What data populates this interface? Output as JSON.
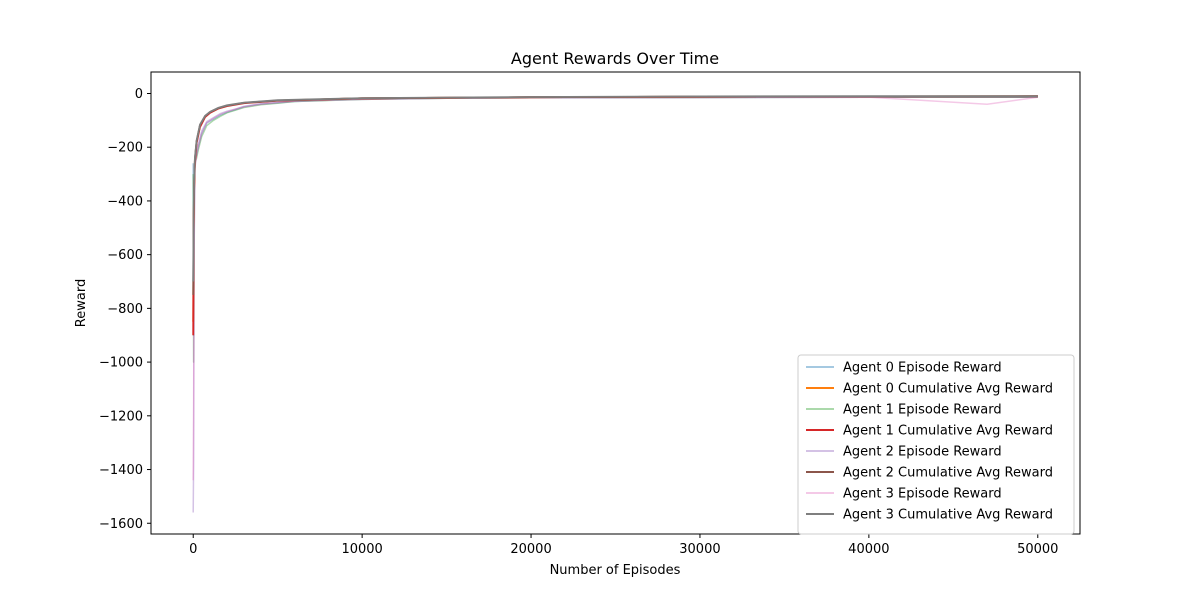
{
  "chart_data": {
    "type": "line",
    "title": "Agent Rewards Over Time",
    "xlabel": "Number of Episodes",
    "ylabel": "Reward",
    "xlim": [
      -2500,
      52500
    ],
    "ylim": [
      -1640,
      80
    ],
    "x_ticks": [
      0,
      10000,
      20000,
      30000,
      40000,
      50000
    ],
    "x_tick_labels": [
      "0",
      "10000",
      "20000",
      "30000",
      "40000",
      "50000"
    ],
    "y_ticks": [
      0,
      -200,
      -400,
      -600,
      -800,
      -1000,
      -1200,
      -1400,
      -1600
    ],
    "y_tick_labels": [
      "0",
      "−200",
      "−400",
      "−600",
      "−800",
      "−1000",
      "−1200",
      "−1400",
      "−1600"
    ],
    "grid": false,
    "legend_position": "lower-right",
    "series": [
      {
        "name": "Agent 0 Episode Reward",
        "kind": "episode",
        "color": "#1f77b4",
        "opacity": 0.4,
        "x": [
          0,
          20,
          50,
          100,
          200,
          300,
          500,
          800,
          1200,
          1600,
          2000,
          2500,
          3000,
          4000,
          5000,
          6000,
          8000,
          10000,
          15000,
          20000,
          30000,
          40000,
          50000
        ],
        "y": [
          -260,
          -900,
          -400,
          -250,
          -230,
          -200,
          -150,
          -110,
          -95,
          -80,
          -70,
          -60,
          -50,
          -40,
          -35,
          -30,
          -25,
          -22,
          -18,
          -16,
          -15,
          -14,
          -14
        ]
      },
      {
        "name": "Agent 0 Cumulative Avg Reward",
        "kind": "cumulative",
        "color": "#ff7f0e",
        "opacity": 1.0,
        "x": [
          0,
          20,
          50,
          100,
          200,
          400,
          700,
          1000,
          1500,
          2000,
          3000,
          5000,
          10000,
          20000,
          30000,
          40000,
          50000
        ],
        "y": [
          -850,
          -500,
          -350,
          -250,
          -180,
          -120,
          -85,
          -70,
          -55,
          -46,
          -35,
          -26,
          -18,
          -14,
          -12,
          -11,
          -10
        ]
      },
      {
        "name": "Agent 1 Episode Reward",
        "kind": "episode",
        "color": "#2ca02c",
        "opacity": 0.4,
        "x": [
          0,
          20,
          50,
          100,
          200,
          300,
          500,
          800,
          1200,
          1600,
          2000,
          2500,
          3000,
          4000,
          5000,
          6000,
          8000,
          10000,
          15000,
          20000,
          30000,
          40000,
          50000
        ],
        "y": [
          -300,
          -1000,
          -450,
          -260,
          -240,
          -210,
          -160,
          -120,
          -100,
          -85,
          -72,
          -62,
          -52,
          -42,
          -36,
          -30,
          -26,
          -22,
          -18,
          -16,
          -15,
          -14,
          -14
        ]
      },
      {
        "name": "Agent 1 Cumulative Avg Reward",
        "kind": "cumulative",
        "color": "#d62728",
        "opacity": 1.0,
        "x": [
          0,
          20,
          50,
          100,
          200,
          400,
          700,
          1000,
          1500,
          2000,
          3000,
          5000,
          10000,
          20000,
          30000,
          40000,
          50000
        ],
        "y": [
          -900,
          -520,
          -360,
          -260,
          -185,
          -125,
          -88,
          -72,
          -56,
          -47,
          -36,
          -27,
          -18,
          -14,
          -12,
          -11,
          -10
        ]
      },
      {
        "name": "Agent 2 Episode Reward",
        "kind": "episode",
        "color": "#9467bd",
        "opacity": 0.4,
        "x": [
          0,
          20,
          50,
          100,
          200,
          300,
          500,
          800,
          1200,
          1600,
          2000,
          2500,
          3000,
          4000,
          5000,
          6000,
          8000,
          10000,
          15000,
          20000,
          30000,
          40000,
          50000
        ],
        "y": [
          -1560,
          -1380,
          -600,
          -280,
          -220,
          -190,
          -140,
          -105,
          -90,
          -75,
          -66,
          -58,
          -48,
          -38,
          -33,
          -28,
          -24,
          -21,
          -17,
          -16,
          -15,
          -14,
          -14
        ]
      },
      {
        "name": "Agent 2 Cumulative Avg Reward",
        "kind": "cumulative",
        "color": "#8c564b",
        "opacity": 1.0,
        "x": [
          0,
          20,
          50,
          100,
          200,
          400,
          700,
          1000,
          1500,
          2000,
          3000,
          5000,
          10000,
          20000,
          30000,
          40000,
          50000
        ],
        "y": [
          -750,
          -480,
          -340,
          -245,
          -178,
          -118,
          -84,
          -69,
          -54,
          -45,
          -35,
          -26,
          -18,
          -14,
          -12,
          -11,
          -10
        ]
      },
      {
        "name": "Agent 3 Episode Reward",
        "kind": "episode",
        "color": "#e377c2",
        "opacity": 0.4,
        "x": [
          0,
          20,
          50,
          100,
          200,
          300,
          500,
          800,
          1200,
          1600,
          2000,
          2500,
          3000,
          4000,
          5000,
          6000,
          8000,
          10000,
          15000,
          20000,
          30000,
          40000,
          47000,
          50000
        ],
        "y": [
          -1440,
          -1200,
          -550,
          -270,
          -230,
          -200,
          -150,
          -110,
          -92,
          -78,
          -68,
          -58,
          -50,
          -40,
          -34,
          -29,
          -25,
          -22,
          -18,
          -16,
          -15,
          -14,
          -40,
          -14
        ]
      },
      {
        "name": "Agent 3 Cumulative Avg Reward",
        "kind": "cumulative",
        "color": "#7f7f7f",
        "opacity": 1.0,
        "x": [
          0,
          20,
          50,
          100,
          200,
          400,
          700,
          1000,
          1500,
          2000,
          3000,
          5000,
          10000,
          20000,
          30000,
          40000,
          50000
        ],
        "y": [
          -700,
          -460,
          -330,
          -240,
          -175,
          -116,
          -83,
          -68,
          -53,
          -44,
          -34,
          -25,
          -17,
          -13,
          -11,
          -10,
          -10
        ]
      }
    ]
  }
}
